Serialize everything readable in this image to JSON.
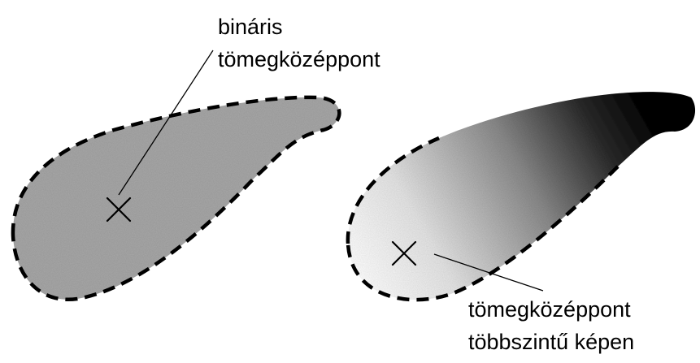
{
  "diagram": {
    "left_shape": {
      "description_label": [
        "bináris",
        "tömegközéppont"
      ],
      "marker": "cross-icon",
      "fill_type": "uniform-gray"
    },
    "right_shape": {
      "description_label": [
        "tömegközéppont",
        "többszintű képen"
      ],
      "marker": "cross-icon",
      "fill_type": "gray-gradient"
    }
  },
  "colors": {
    "uniform_fill": "#a8a8a8",
    "gradient_light": "#ffffff",
    "gradient_mid": "#8c8c8c",
    "gradient_dark": "#050505",
    "outline": "#000000"
  }
}
